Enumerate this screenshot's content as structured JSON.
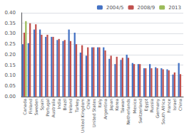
{
  "chart_data": {
    "type": "bar",
    "categories": [
      "Canada",
      "Finland",
      "Sweden",
      "Spain",
      "Portugal",
      "Australia",
      "India",
      "Brazil",
      "Ireland",
      "Turkey",
      "United Kingdom",
      "Chile",
      "United States",
      "Italy",
      "Argentina",
      "Japan",
      "Korea",
      "Taiwan",
      "Netherlands",
      "Mexico",
      "Switzerland",
      "Egypt",
      "Russia",
      "Germany",
      "South Africa",
      "France",
      "Israel",
      "China"
    ],
    "series": [
      {
        "name": "2004/5",
        "color": "#4472C4",
        "values": [
          0.25,
          0.255,
          0.32,
          0.32,
          0.285,
          0.285,
          0.27,
          0.265,
          0.32,
          0.305,
          0.21,
          0.195,
          0.235,
          0.235,
          0.235,
          0.18,
          0.155,
          0.175,
          0.2,
          0.16,
          0.155,
          0.135,
          0.155,
          0.14,
          0.135,
          0.13,
          0.105,
          0.16
        ]
      },
      {
        "name": "2008/9",
        "color": "#C0504D",
        "values": [
          0.305,
          0.35,
          0.345,
          0.295,
          0.295,
          0.285,
          0.275,
          0.27,
          0.265,
          0.25,
          0.245,
          0.235,
          0.235,
          0.235,
          0.22,
          0.195,
          0.19,
          0.185,
          0.185,
          0.155,
          0.155,
          0.135,
          0.135,
          0.135,
          0.13,
          0.125,
          0.115,
          0.107
        ]
      },
      {
        "name": "2013",
        "color": "#9BBB59",
        "values": [
          0.36,
          0.0,
          0.0,
          0.0,
          0.0,
          0.0,
          0.0,
          0.0,
          0.0,
          0.0,
          0.0,
          0.0,
          0.0,
          0.0,
          0.0,
          0.0,
          0.0,
          0.0,
          0.0,
          0.0,
          0.0,
          0.0,
          0.0,
          0.0,
          0.0,
          0.0,
          0.0,
          0.0
        ]
      }
    ],
    "ylim": [
      0.0,
      0.4
    ],
    "yticks": [
      {
        "value": 0.0,
        "label": "0.00"
      },
      {
        "value": 0.05,
        "label": "0.05"
      },
      {
        "value": 0.1,
        "label": "0.10"
      },
      {
        "value": 0.15,
        "label": "0.15"
      },
      {
        "value": 0.2,
        "label": "0.20"
      },
      {
        "value": 0.25,
        "label": "0.25"
      },
      {
        "value": 0.3,
        "label": "0.30"
      },
      {
        "value": 0.35,
        "label": "0.35"
      },
      {
        "value": 0.4,
        "label": "0.40"
      }
    ],
    "grid": true,
    "legend": "upper right"
  }
}
